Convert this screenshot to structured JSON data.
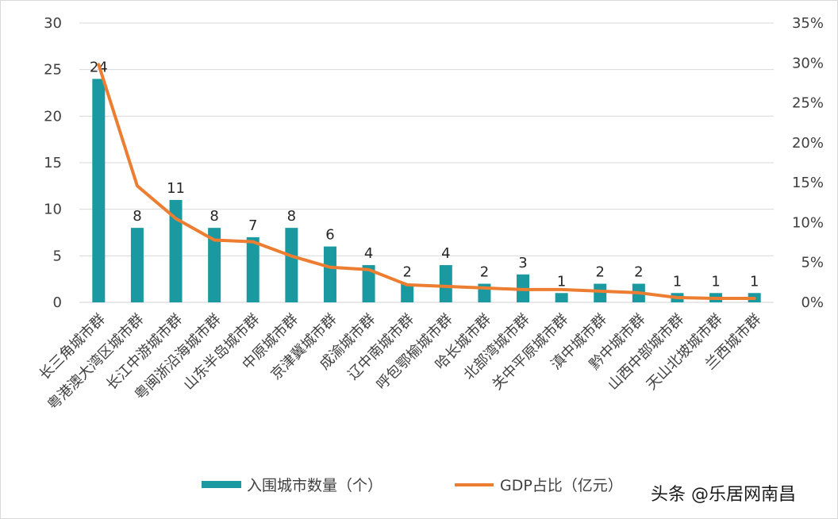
{
  "chart_data": {
    "type": "bar",
    "title": "",
    "categories": [
      "长三角城市群",
      "粤港澳大湾区城市群",
      "长江中游城市群",
      "粤闽浙沿海城市群",
      "山东半岛城市群",
      "中原城市群",
      "京津冀城市群",
      "成渝城市群",
      "辽中南城市群",
      "呼包鄂榆城市群",
      "哈长城市群",
      "北部湾城市群",
      "关中平原城市群",
      "滇中城市群",
      "黔中城市群",
      "山西中部城市群",
      "天山北坡城市群",
      "兰西城市群"
    ],
    "series": [
      {
        "name": "入围城市数量（个）",
        "type": "bar",
        "axis": "left",
        "color": "#1a9aa0",
        "values": [
          24,
          8,
          11,
          8,
          7,
          8,
          6,
          4,
          2,
          4,
          2,
          3,
          1,
          2,
          2,
          1,
          1,
          1
        ]
      },
      {
        "name": "GDP占比（亿元）",
        "type": "line",
        "axis": "right",
        "color": "#ed7d31",
        "values": [
          29.8,
          14.6,
          10.5,
          7.8,
          7.6,
          5.8,
          4.4,
          4.1,
          2.2,
          2.0,
          1.8,
          1.6,
          1.6,
          1.4,
          1.2,
          0.6,
          0.5,
          0.5
        ]
      }
    ],
    "y_left": {
      "min": 0,
      "max": 30,
      "ticks": [
        "0",
        "5",
        "10",
        "15",
        "20",
        "25",
        "30"
      ]
    },
    "y_right": {
      "min": 0,
      "max": 35,
      "ticks": [
        "0%",
        "5%",
        "10%",
        "15%",
        "20%",
        "25%",
        "30%",
        "35%"
      ]
    },
    "grid": true,
    "legend_position": "bottom",
    "data_labels": [
      "24",
      "8",
      "11",
      "8",
      "7",
      "8",
      "6",
      "4",
      "2",
      "4",
      "2",
      "3",
      "1",
      "2",
      "2",
      "1",
      "1",
      "1"
    ]
  },
  "watermark": "头条 @乐居网南昌",
  "colors": {
    "bar": "#1a9aa0",
    "line": "#ed7d31",
    "grid": "#d9d9d9",
    "text": "#404040"
  }
}
